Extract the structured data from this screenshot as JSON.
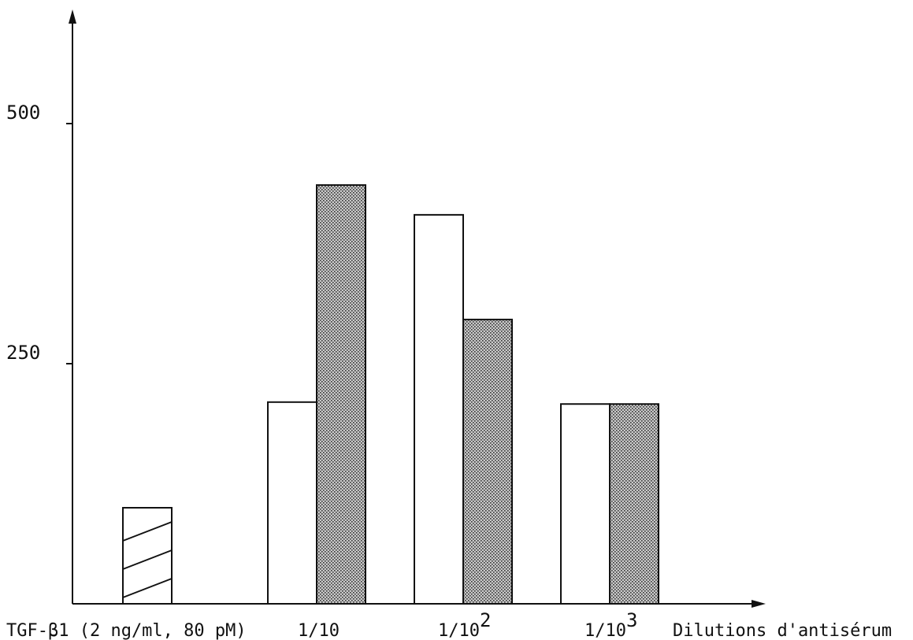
{
  "chart_data": {
    "type": "bar",
    "title": "",
    "xlabel": "Dilutions d'antisérum",
    "ylabel": "",
    "ylim": [
      0,
      500
    ],
    "yticks": [
      {
        "value": 250,
        "label": "250"
      },
      {
        "value": 500,
        "label": "500"
      }
    ],
    "grid": false,
    "legend": "none",
    "control_bar": {
      "label": "TGF-β1 (2 ng/ml, 80 pM)",
      "value": 100,
      "fill": "hatched"
    },
    "categories": [
      {
        "label": "1/10",
        "base": "1/10",
        "sup": ""
      },
      {
        "label": "1/10²",
        "base": "1/10",
        "sup": "2"
      },
      {
        "label": "1/10³",
        "base": "1/10",
        "sup": "3"
      }
    ],
    "series": [
      {
        "fill": "white",
        "values": [
          210,
          405,
          208
        ]
      },
      {
        "fill": "dotted",
        "values": [
          436,
          296,
          208
        ]
      }
    ]
  }
}
